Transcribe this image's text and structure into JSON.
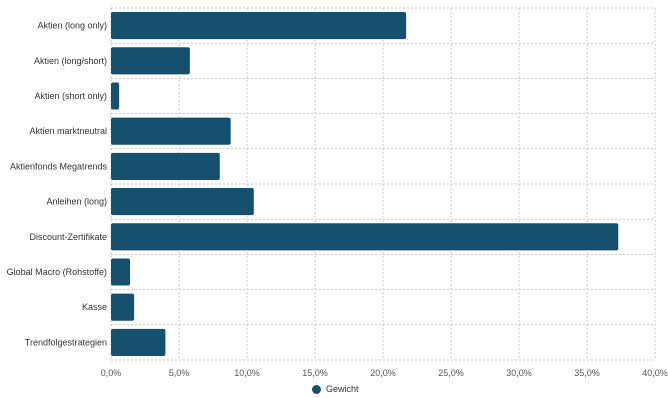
{
  "chart_data": {
    "type": "bar",
    "orientation": "horizontal",
    "categories": [
      "Aktien (long only)",
      "Aktien (long/short)",
      "Aktien (short only)",
      "Aktien marktneutral",
      "Aktienfonds Megatrends",
      "Anleihen (long)",
      "Discount-Zertifikate",
      "Global Macro (Rohstoffe)",
      "Kasse",
      "Trendfolgestrategien"
    ],
    "series": [
      {
        "name": "Gewicht",
        "values": [
          21.7,
          5.8,
          0.6,
          8.8,
          8.0,
          10.5,
          37.3,
          1.4,
          1.7,
          4.0
        ]
      }
    ],
    "xlim": [
      0,
      40
    ],
    "x_ticks": [
      "0,0%",
      "5,0%",
      "10,0%",
      "15,0%",
      "20,0%",
      "25,0%",
      "30,0%",
      "35,0%",
      "40,0%"
    ],
    "grid": true,
    "legend_position": "bottom",
    "colors": {
      "bar": "#15506e",
      "grid": "#c8c8c8",
      "axis_text": "#555555"
    }
  }
}
